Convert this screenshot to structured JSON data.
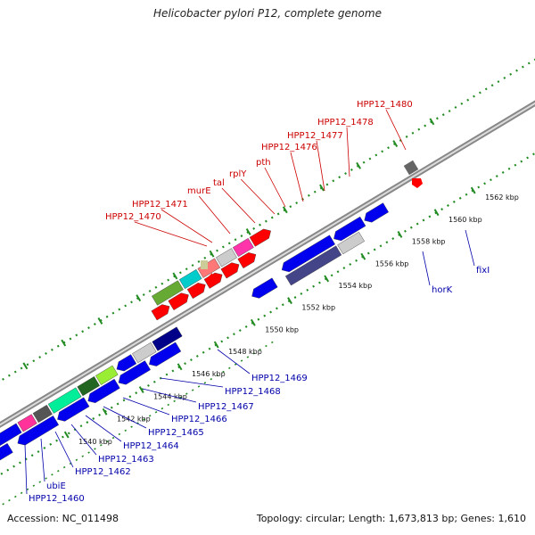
{
  "title": "Helicobacter pylori P12, complete genome",
  "accession_text": "Accession: NC_011498",
  "topology_text": "Topology: circular; Length: 1,673,813 bp; Genes: 1,610",
  "ticks": [
    {
      "label": "1540 kbp",
      "kbp": 1540
    },
    {
      "label": "1542 kbp",
      "kbp": 1542
    },
    {
      "label": "1544 kbp",
      "kbp": 1544
    },
    {
      "label": "1546 kbp",
      "kbp": 1546
    },
    {
      "label": "1548 kbp",
      "kbp": 1548
    },
    {
      "label": "1550 kbp",
      "kbp": 1550
    },
    {
      "label": "1552 kbp",
      "kbp": 1552
    },
    {
      "label": "1554 kbp",
      "kbp": 1554
    },
    {
      "label": "1556 kbp",
      "kbp": 1556
    },
    {
      "label": "1558 kbp",
      "kbp": 1558
    },
    {
      "label": "1560 kbp",
      "kbp": 1560
    },
    {
      "label": "1562 kbp",
      "kbp": 1562
    }
  ],
  "labels_forward": [
    "HPP12_1470",
    "HPP12_1471",
    "murE",
    "tal",
    "rplY",
    "pth",
    "HPP12_1476",
    "HPP12_1477",
    "HPP12_1478",
    "HPP12_1480"
  ],
  "labels_reverse": [
    "HPP12_1460",
    "ubiE",
    "HPP12_1462",
    "HPP12_1463",
    "HPP12_1464",
    "HPP12_1465",
    "HPP12_1466",
    "HPP12_1467",
    "HPP12_1468",
    "HPP12_1469",
    "horK",
    "fixI"
  ],
  "colors": {
    "forward_gene": "#ff0000",
    "reverse_gene": "#0000ee",
    "forward_label": "#cc0000",
    "reverse_label": "#0000aa",
    "tick_mark": "#228B22"
  }
}
